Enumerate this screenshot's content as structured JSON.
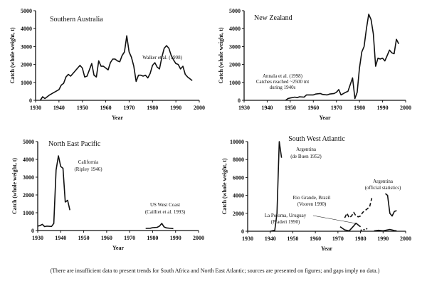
{
  "footnote": "(There are insufficient data to present trends for South Africa and North East Atlantic; sources are presented on figures; and gaps imply no data.)",
  "chart_data": [
    {
      "type": "line",
      "title": "Southern Australia",
      "xlabel": "Year",
      "ylabel": "Catch (whole weight, t)",
      "xlim": [
        1930,
        2000
      ],
      "ylim": [
        0,
        5000
      ],
      "xticks": [
        "1930",
        "1940",
        "1950",
        "1960",
        "1970",
        "1980",
        "1990",
        "2000"
      ],
      "yticks": [
        "0",
        "1000",
        "2000",
        "3000",
        "4000",
        "5000"
      ],
      "annotations": [
        {
          "text": "Walker et al. (1998)"
        }
      ],
      "series": [
        {
          "style": "solid",
          "x": [
            1932,
            1933,
            1934,
            1936,
            1938,
            1940,
            1941,
            1942,
            1943,
            1944,
            1945,
            1947,
            1948,
            1949,
            1950,
            1951,
            1952,
            1953,
            1954,
            1955,
            1956,
            1957,
            1958,
            1959,
            1960,
            1961,
            1962,
            1963,
            1964,
            1965,
            1966,
            1967,
            1968,
            1969,
            1970,
            1971,
            1972,
            1973,
            1974,
            1975,
            1976,
            1977,
            1978,
            1979,
            1980,
            1981,
            1982,
            1983,
            1984,
            1985,
            1986,
            1987,
            1988,
            1989,
            1990,
            1991,
            1992,
            1993,
            1994,
            1995,
            1996,
            1997
          ],
          "y": [
            0,
            200,
            100,
            300,
            450,
            600,
            850,
            950,
            1300,
            1450,
            1350,
            1650,
            1800,
            1950,
            1800,
            1300,
            1350,
            1700,
            2050,
            1400,
            1300,
            2200,
            1900,
            1900,
            1800,
            1700,
            2100,
            2300,
            2300,
            2200,
            2150,
            2500,
            2700,
            3600,
            2700,
            2400,
            1900,
            1050,
            1400,
            1400,
            1350,
            1400,
            1250,
            1500,
            1950,
            2100,
            1850,
            1750,
            2400,
            2900,
            3050,
            2900,
            2500,
            2250,
            2050,
            2000,
            1750,
            1900,
            1450,
            1300,
            1200,
            1100
          ]
        }
      ]
    },
    {
      "type": "line",
      "title": "New Zealand",
      "xlabel": "Year",
      "ylabel": "Catch (whole weight, t)",
      "xlim": [
        1930,
        2000
      ],
      "ylim": [
        0,
        5000
      ],
      "xticks": [
        "1930",
        "1940",
        "1950",
        "1960",
        "1970",
        "1980",
        "1990",
        "2000"
      ],
      "yticks": [
        "0",
        "1000",
        "2000",
        "3000",
        "4000",
        "5000"
      ],
      "annotations": [
        {
          "text": "Annala et al. (1998)"
        },
        {
          "text": "Catches reached ~2500 mt"
        },
        {
          "text": "during 1940s"
        }
      ],
      "series": [
        {
          "style": "solid",
          "x": [
            1948,
            1949,
            1950,
            1952,
            1953,
            1954,
            1956,
            1957,
            1959,
            1960,
            1961,
            1963,
            1964,
            1966,
            1967,
            1969,
            1970,
            1971,
            1972,
            1974,
            1975,
            1977,
            1978,
            1979,
            1980,
            1981,
            1982,
            1983,
            1984,
            1985,
            1986,
            1987,
            1988,
            1989,
            1990,
            1991,
            1992,
            1993,
            1994,
            1995,
            1996,
            1997
          ],
          "y": [
            0,
            100,
            130,
            180,
            150,
            200,
            180,
            300,
            300,
            300,
            350,
            380,
            330,
            300,
            350,
            380,
            450,
            600,
            300,
            450,
            500,
            1250,
            100,
            450,
            1800,
            2700,
            3000,
            4000,
            4800,
            4500,
            3700,
            1900,
            2350,
            2300,
            2350,
            2200,
            2500,
            2800,
            2650,
            2600,
            3400,
            3150
          ]
        }
      ]
    },
    {
      "type": "line",
      "title": "North East Pacific",
      "xlabel": "Year",
      "ylabel": "Catch (whole weight, t)",
      "xlim": [
        1930,
        2000
      ],
      "ylim": [
        0,
        5000
      ],
      "xticks": [
        "1930",
        "1940",
        "1950",
        "1960",
        "1970",
        "1980",
        "1990",
        "2000"
      ],
      "yticks": [
        "0",
        "1000",
        "2000",
        "3000",
        "4000",
        "5000"
      ],
      "annotations": [
        {
          "text": "California"
        },
        {
          "text": "(Ripley 1946)"
        },
        {
          "text": "US West Coast"
        },
        {
          "text": "(Cailliet et al. 1993)"
        }
      ],
      "series": [
        {
          "style": "solid",
          "x": [
            1930,
            1931,
            1932,
            1933,
            1934,
            1936,
            1937,
            1938,
            1939,
            1940,
            1941,
            1942,
            1943,
            1944
          ],
          "y": [
            250,
            280,
            350,
            220,
            250,
            230,
            400,
            3400,
            4200,
            3600,
            3500,
            1600,
            1700,
            1150
          ]
        },
        {
          "style": "solid",
          "x": [
            1977,
            1979,
            1980,
            1982,
            1983,
            1984,
            1985,
            1986,
            1988,
            1989
          ],
          "y": [
            120,
            130,
            160,
            180,
            250,
            400,
            200,
            150,
            120,
            110
          ]
        }
      ]
    },
    {
      "type": "line",
      "title": "South West Atlantic",
      "xlabel": "Year",
      "ylabel": "Catch (whole weight, t)",
      "xlim": [
        1930,
        2000
      ],
      "ylim": [
        0,
        10000
      ],
      "xticks": [
        "1930",
        "1940",
        "1950",
        "1960",
        "1970",
        "1980",
        "1990",
        "2000"
      ],
      "yticks": [
        "0",
        "2000",
        "4000",
        "6000",
        "8000",
        "10000"
      ],
      "annotations": [
        {
          "text": "Argentina"
        },
        {
          "text": "(de Buen 1952)"
        },
        {
          "text": "Argentina"
        },
        {
          "text": "(official statistics)"
        },
        {
          "text": "Rio Grande, Brazil"
        },
        {
          "text": "(Vooren 1990)"
        },
        {
          "text": "La Poloma, Uruguay"
        },
        {
          "text": "(Praderi 1990)"
        }
      ],
      "series": [
        {
          "style": "solid",
          "x": [
            1940,
            1942,
            1943,
            1944,
            1945
          ],
          "y": [
            0,
            100,
            2000,
            10000,
            8200
          ]
        },
        {
          "style": "dashed",
          "x": [
            1973,
            1974,
            1975,
            1976,
            1977,
            1978,
            1979,
            1980,
            1981,
            1982,
            1983,
            1984,
            1985
          ],
          "y": [
            1500,
            2000,
            1500,
            1700,
            2100,
            1700,
            1600,
            1700,
            2100,
            2300,
            2500,
            2700,
            3700
          ]
        },
        {
          "style": "solid",
          "x": [
            1971,
            1973,
            1975,
            1977,
            1978,
            1979,
            1980
          ],
          "y": [
            500,
            150,
            50,
            600,
            900,
            700,
            500
          ]
        },
        {
          "style": "dotted",
          "x": [
            1980,
            1982,
            1983
          ],
          "y": [
            100,
            200,
            300
          ]
        },
        {
          "style": "solid",
          "x": [
            1991,
            1992,
            1993,
            1994,
            1995,
            1996
          ],
          "y": [
            4200,
            4000,
            2000,
            1700,
            2200,
            2300
          ]
        },
        {
          "style": "solid",
          "x": [
            1986,
            1988,
            1990,
            1993,
            1995,
            1996
          ],
          "y": [
            50,
            100,
            50,
            200,
            80,
            50
          ]
        }
      ]
    }
  ]
}
